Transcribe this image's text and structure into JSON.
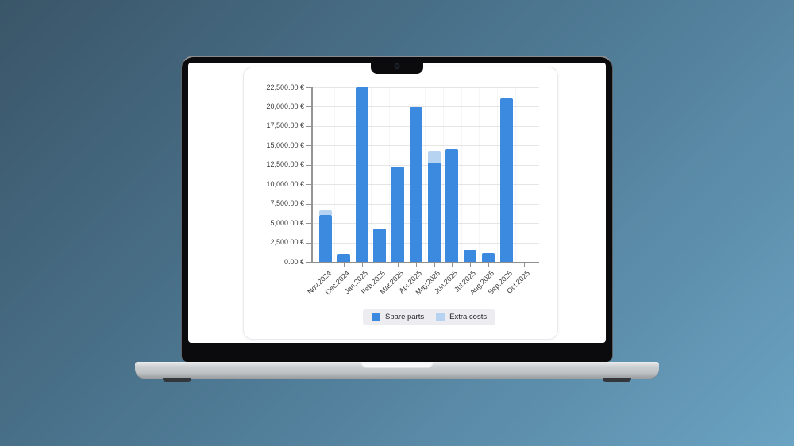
{
  "chart_data": {
    "type": "bar",
    "stacked": true,
    "title": "",
    "xlabel": "",
    "ylabel": "",
    "categories": [
      "Nov.2024",
      "Dec.2024",
      "Jan.2025",
      "Feb.2025",
      "Mar.2025",
      "Apr.2025",
      "May.2025",
      "Jun.2025",
      "Jul.2025",
      "Aug.2025",
      "Sep.2025",
      "Oct.2025"
    ],
    "series": [
      {
        "name": "Spare parts",
        "color": "#3b8ae0",
        "values": [
          6050,
          1050,
          22450,
          4250,
          12300,
          19900,
          12750,
          14500,
          1500,
          1100,
          21100,
          0
        ]
      },
      {
        "name": "Extra costs",
        "color": "#b6d4f1",
        "values": [
          550,
          0,
          0,
          0,
          0,
          0,
          1550,
          0,
          0,
          0,
          0,
          0
        ]
      }
    ],
    "ylim": [
      0,
      22500
    ],
    "y_tick_step": 2500,
    "y_tick_labels": [
      "0.00 €",
      "2,500.00 €",
      "5,000.00 €",
      "7,500.00 €",
      "10,000.00 €",
      "12,500.00 €",
      "15,000.00 €",
      "17,500.00 €",
      "20,000.00 €",
      "22,500.00 €"
    ],
    "grid": true,
    "legend_position": "bottom"
  },
  "theme": {
    "background_gradient_start": "#3a5568",
    "background_gradient_end": "#6ba3c2",
    "spare_parts_color": "#3b8ae0",
    "extra_costs_color": "#b6d4f1",
    "legend_background": "#ededf1",
    "grid_color": "#e6e6e6",
    "axis_color": "#8f8f8f"
  }
}
